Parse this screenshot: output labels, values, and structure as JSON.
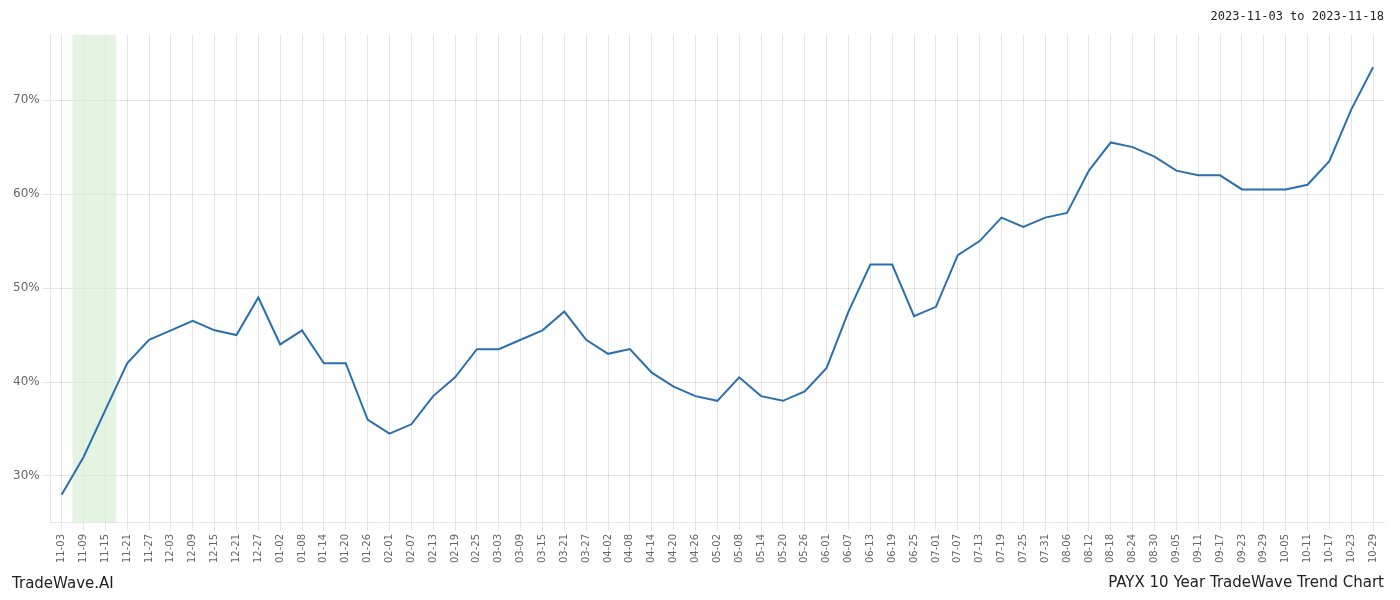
{
  "chart_data": {
    "type": "line",
    "title": "PAYX 10 Year TradeWave Trend Chart",
    "subtitle": "2023-11-03 to 2023-11-18",
    "annotations": [
      "TradeWave.AI"
    ],
    "categories": [
      "11-03",
      "11-09",
      "11-15",
      "11-21",
      "11-27",
      "12-03",
      "12-09",
      "12-15",
      "12-21",
      "12-27",
      "01-02",
      "01-08",
      "01-14",
      "01-20",
      "01-26",
      "02-01",
      "02-07",
      "02-13",
      "02-19",
      "02-25",
      "03-03",
      "03-09",
      "03-15",
      "03-21",
      "03-27",
      "04-02",
      "04-08",
      "04-14",
      "04-20",
      "04-26",
      "05-02",
      "05-08",
      "05-14",
      "05-20",
      "05-26",
      "06-01",
      "06-07",
      "06-13",
      "06-19",
      "06-25",
      "07-01",
      "07-07",
      "07-13",
      "07-19",
      "07-25",
      "07-31",
      "08-06",
      "08-12",
      "08-18",
      "08-24",
      "08-30",
      "09-05",
      "09-11",
      "09-17",
      "09-23",
      "09-29",
      "10-05",
      "10-11",
      "10-17",
      "10-23",
      "10-29"
    ],
    "values": [
      28.0,
      32.0,
      37.0,
      42.0,
      44.5,
      45.5,
      46.5,
      45.5,
      45.0,
      49.0,
      44.0,
      45.5,
      42.0,
      42.0,
      36.0,
      34.5,
      35.5,
      38.5,
      40.5,
      43.5,
      43.5,
      44.5,
      45.5,
      47.5,
      44.5,
      43.0,
      43.5,
      41.0,
      39.5,
      38.5,
      38.0,
      40.5,
      38.5,
      38.0,
      39.0,
      41.5,
      47.5,
      52.5,
      52.5,
      47.0,
      48.0,
      53.5,
      55.0,
      57.5,
      56.5,
      57.5,
      58.0,
      62.5,
      65.5,
      65.0,
      64.0,
      62.5,
      62.0,
      62.0,
      60.5,
      60.5,
      60.5,
      61.0,
      63.5,
      69.0,
      73.5
    ],
    "color": "#2c6fad",
    "highlight": {
      "start": "11-09",
      "end": "11-21",
      "color": "#d6ecd2"
    },
    "ylim": [
      25,
      77
    ],
    "yticks": [
      {
        "value": 30,
        "label": "30%"
      },
      {
        "value": 40,
        "label": "40%"
      },
      {
        "value": 50,
        "label": "50%"
      },
      {
        "value": 60,
        "label": "60%"
      },
      {
        "value": 70,
        "label": "70%"
      }
    ],
    "grid": true
  }
}
